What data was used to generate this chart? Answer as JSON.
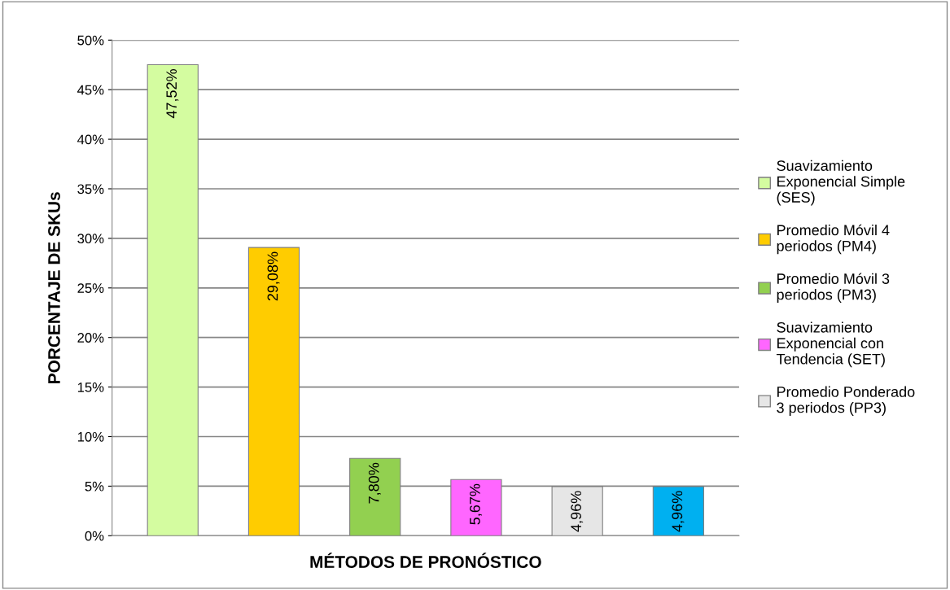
{
  "chart_data": {
    "type": "bar",
    "xlabel": "MÉTODOS DE PRONÓSTICO",
    "ylabel": "PORCENTAJE DE SKUs",
    "categories": [
      null,
      null,
      null,
      null,
      null,
      null
    ],
    "series": [
      {
        "name": "Suavizamiento Exponencial Simple (SES)",
        "color": "#d4fca0",
        "values": [
          47.52,
          null,
          null,
          null,
          null,
          null
        ],
        "value_labels": [
          "47,52%",
          null,
          null,
          null,
          null,
          null
        ]
      },
      {
        "name": "Promedio Móvil 4 periodos (PM4)",
        "color": "#ffcc00",
        "values": [
          null,
          29.08,
          null,
          null,
          null,
          null
        ],
        "value_labels": [
          null,
          "29,08%",
          null,
          null,
          null,
          null
        ]
      },
      {
        "name": "Promedio Móvil 3 periodos (PM3)",
        "color": "#92d050",
        "values": [
          null,
          null,
          7.8,
          null,
          null,
          null
        ],
        "value_labels": [
          null,
          null,
          "7,80%",
          null,
          null,
          null
        ]
      },
      {
        "name": "Suavizamiento Exponencial con Tendencia (SET)",
        "color": "#ff66ff",
        "values": [
          null,
          null,
          null,
          5.67,
          null,
          null
        ],
        "value_labels": [
          null,
          null,
          null,
          "5,67%",
          null,
          null
        ]
      },
      {
        "name": "Promedio Ponderado 3 periodos (PP3)",
        "color": "#e6e6e6",
        "values": [
          null,
          null,
          null,
          null,
          4.96,
          null
        ],
        "value_labels": [
          null,
          null,
          null,
          null,
          "4,96%",
          null
        ]
      },
      {
        "color": "#00b0f0",
        "values": [
          null,
          null,
          null,
          null,
          null,
          4.96
        ],
        "value_labels": [
          null,
          null,
          null,
          null,
          null,
          "4,96%"
        ]
      }
    ],
    "ylim": [
      0,
      50
    ],
    "yticks": [
      {
        "value": 0,
        "label": "0%"
      },
      {
        "value": 5,
        "label": "5%"
      },
      {
        "value": 10,
        "label": "10%"
      },
      {
        "value": 15,
        "label": "15%"
      },
      {
        "value": 20,
        "label": "20%"
      },
      {
        "value": 25,
        "label": "25%"
      },
      {
        "value": 30,
        "label": "30%"
      },
      {
        "value": 35,
        "label": "35%"
      },
      {
        "value": 40,
        "label": "40%"
      },
      {
        "value": 45,
        "label": "45%"
      },
      {
        "value": 50,
        "label": "50%"
      }
    ],
    "grid": "y",
    "legend": "right"
  }
}
